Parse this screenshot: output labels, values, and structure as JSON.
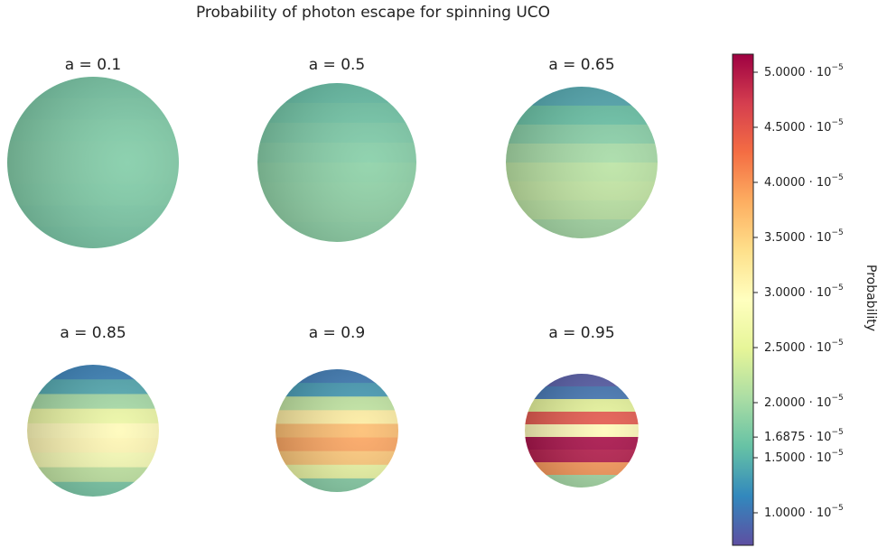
{
  "chart_data": {
    "type": "sphere-grid",
    "title": "Probability of photon escape for spinning UCO",
    "colorbar_label": "Probability",
    "colormap": [
      "#5e4fa2",
      "#3288bd",
      "#66c2a5",
      "#abdda4",
      "#e6f598",
      "#ffffbf",
      "#fee08b",
      "#fdae61",
      "#f46d43",
      "#d53e4f",
      "#9e0142"
    ],
    "clim": [
      7.05e-06,
      5.164e-05
    ],
    "cticks": [
      {
        "value": 1e-05,
        "label": "1.0000 · 10",
        "exponent": "−5"
      },
      {
        "value": 1.5e-05,
        "label": "1.5000 · 10",
        "exponent": "−5"
      },
      {
        "value": 1.6875e-05,
        "label": "1.6875 · 10",
        "exponent": "−5"
      },
      {
        "value": 2e-05,
        "label": "2.0000 · 10",
        "exponent": "−5"
      },
      {
        "value": 2.5e-05,
        "label": "2.5000 · 10",
        "exponent": "−5"
      },
      {
        "value": 3e-05,
        "label": "3.0000 · 10",
        "exponent": "−5"
      },
      {
        "value": 3.5e-05,
        "label": "3.5000 · 10",
        "exponent": "−5"
      },
      {
        "value": 4e-05,
        "label": "4.0000 · 10",
        "exponent": "−5"
      },
      {
        "value": 4.5e-05,
        "label": "4.5000 · 10",
        "exponent": "−5"
      },
      {
        "value": 5e-05,
        "label": "5.0000 · 10",
        "exponent": "−5"
      }
    ],
    "panels": [
      {
        "title": "a = 0.1",
        "bands": [
          1.7e-05,
          1.72e-05,
          1.74e-05,
          1.75e-05,
          1.75e-05,
          1.74e-05,
          1.72e-05,
          1.7e-05
        ]
      },
      {
        "title": "a = 0.5",
        "bands": [
          1.58e-05,
          1.65e-05,
          1.72e-05,
          1.78e-05,
          1.82e-05,
          1.84e-05,
          1.85e-05,
          1.83e-05
        ]
      },
      {
        "title": "a = 0.65",
        "bands": [
          1.4e-05,
          1.6e-05,
          1.8e-05,
          2e-05,
          2.15e-05,
          2.2e-05,
          2.15e-05,
          2e-05
        ]
      },
      {
        "title": "a = 0.85",
        "bands": [
          1.1e-05,
          1.4e-05,
          2e-05,
          2.6e-05,
          3e-05,
          3.05e-05,
          2.8e-05,
          2.2e-05,
          1.7e-05
        ]
      },
      {
        "title": "a = 0.9",
        "bands": [
          1.05e-05,
          1.3e-05,
          2.2e-05,
          3.2e-05,
          3.7e-05,
          3.9e-05,
          3.6e-05,
          2.6e-05,
          1.8e-05
        ]
      },
      {
        "title": "a = 0.95",
        "bands": [
          8e-06,
          1e-05,
          2.5e-05,
          4.5e-05,
          3e-05,
          5.1e-05,
          5e-05,
          4e-05,
          2e-05
        ]
      }
    ]
  }
}
